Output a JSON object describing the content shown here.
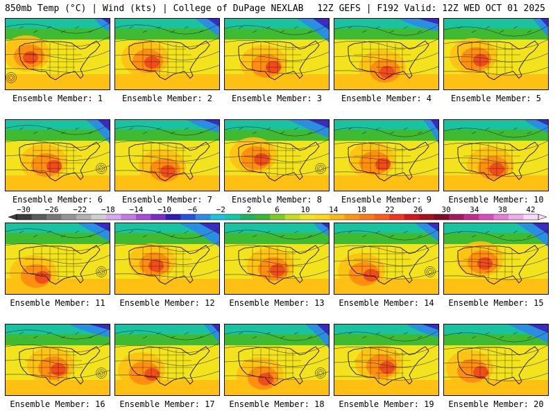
{
  "header": {
    "title_left": "850mb Temp (°C) | Wind (kts) | College of DuPage NEXLAB",
    "title_right": "12Z GEFS | F192 Valid: 12Z WED OCT 01 2025"
  },
  "member_label_prefix": "Ensemble Member: ",
  "members": [
    1,
    2,
    3,
    4,
    5,
    6,
    7,
    8,
    9,
    10,
    11,
    12,
    13,
    14,
    15,
    16,
    17,
    18,
    19,
    20
  ],
  "colorbar": {
    "labels": [
      "−30",
      "−26",
      "−22",
      "−18",
      "−14",
      "−10",
      "−6",
      "−2",
      "2",
      "6",
      "10",
      "14",
      "18",
      "22",
      "26",
      "30",
      "34",
      "38",
      "42"
    ],
    "colors": [
      "#3b3b3b",
      "#5a5a5a",
      "#777777",
      "#959595",
      "#b1b1b1",
      "#cfcfcf",
      "#d7a9ee",
      "#c37ce5",
      "#a84bd6",
      "#7a2cc7",
      "#2d1eb8",
      "#2652e3",
      "#2b8de8",
      "#1cc1e0",
      "#12c9a6",
      "#1ab55d",
      "#39b832",
      "#7dcc22",
      "#c3df1c",
      "#f1e61d",
      "#ffd61a",
      "#ffb812",
      "#ff960d",
      "#ff7a12",
      "#ff5c1a",
      "#f2351e",
      "#d4171a",
      "#a8101c",
      "#7d0d28",
      "#a51a5c",
      "#c42d8d",
      "#da4cbb",
      "#e67dd7",
      "#f1acea",
      "#fbd9f8"
    ]
  },
  "colors": {
    "cold_deep": "#3a2cc0",
    "cold": "#2a8fe0",
    "cool": "#19c2a0",
    "mild": "#3fba33",
    "warm_light": "#9fd625",
    "warm": "#f2e31d",
    "hot_light": "#ffc014",
    "hot": "#ff8a10",
    "very_hot": "#f0461d"
  }
}
